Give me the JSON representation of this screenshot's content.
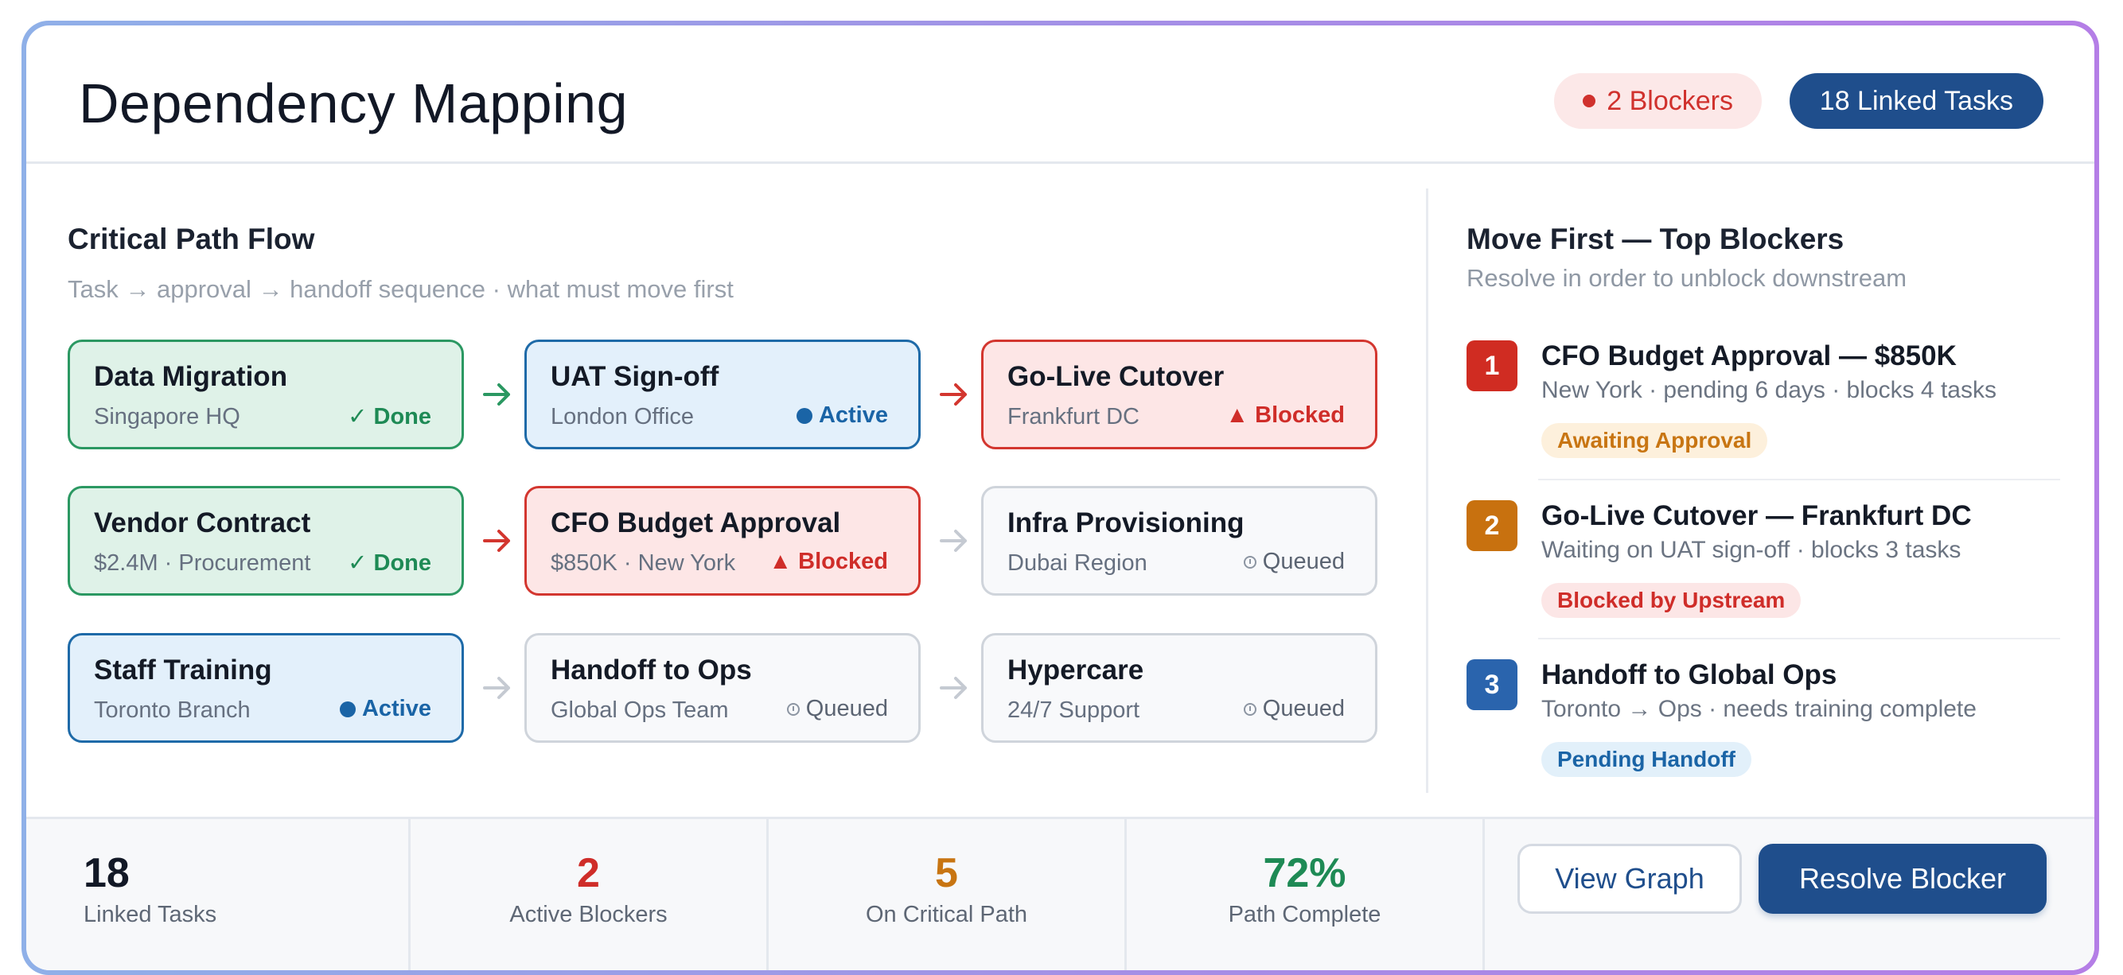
{
  "header": {
    "title": "Dependency Mapping",
    "blockers_badge": "2 Blockers",
    "linked_badge": "18 Linked Tasks"
  },
  "flow": {
    "title": "Critical Path Flow",
    "subtitle": "Task → approval → handoff sequence · what must move first",
    "nodes": [
      {
        "title": "Data Migration",
        "sub": "Singapore HQ",
        "status": "✓ Done",
        "state": "done"
      },
      {
        "title": "UAT Sign-off",
        "sub": "London Office",
        "status": "Active",
        "state": "active"
      },
      {
        "title": "Go-Live Cutover",
        "sub": "Frankfurt DC",
        "status": "▲ Blocked",
        "state": "blocked"
      },
      {
        "title": "Vendor Contract",
        "sub": "$2.4M · Procurement",
        "status": "✓ Done",
        "state": "done"
      },
      {
        "title": "CFO Budget Approval",
        "sub": "$850K · New York",
        "status": "▲ Blocked",
        "state": "blocked"
      },
      {
        "title": "Infra Provisioning",
        "sub": "Dubai Region",
        "status": "Queued",
        "state": "queued"
      },
      {
        "title": "Staff Training",
        "sub": "Toronto Branch",
        "status": "Active",
        "state": "active"
      },
      {
        "title": "Handoff to Ops",
        "sub": "Global Ops Team",
        "status": "Queued",
        "state": "queued"
      },
      {
        "title": "Hypercare",
        "sub": "24/7 Support",
        "status": "Queued",
        "state": "queued"
      }
    ],
    "colors": {
      "done": "#2b9862",
      "active": "#1e6aa8",
      "blocked": "#d3362f",
      "queued": "#cfd4db"
    }
  },
  "blockers": {
    "title": "Move First — Top Blockers",
    "subtitle": "Resolve in order to unblock downstream",
    "items": [
      {
        "num": "1",
        "title": "CFO Budget Approval — $850K",
        "sub": "New York · pending 6 days · blocks 4 tasks",
        "tag": "Awaiting Approval"
      },
      {
        "num": "2",
        "title": "Go-Live Cutover — Frankfurt DC",
        "sub": "Waiting on UAT sign-off · blocks 3 tasks",
        "tag": "Blocked by Upstream"
      },
      {
        "num": "3",
        "title": "Handoff to Global Ops",
        "sub": "Toronto → Ops · needs training complete",
        "tag": "Pending Handoff"
      }
    ]
  },
  "stats": [
    {
      "value": "18",
      "label": "Linked Tasks",
      "color": "#121826"
    },
    {
      "value": "2",
      "label": "Active Blockers",
      "color": "#cf2d29"
    },
    {
      "value": "5",
      "label": "On Critical Path",
      "color": "#c87512"
    },
    {
      "value": "72%",
      "label": "Path Complete",
      "color": "#1e8a55"
    }
  ],
  "actions": {
    "view_graph": "View Graph",
    "resolve_blocker": "Resolve Blocker"
  }
}
